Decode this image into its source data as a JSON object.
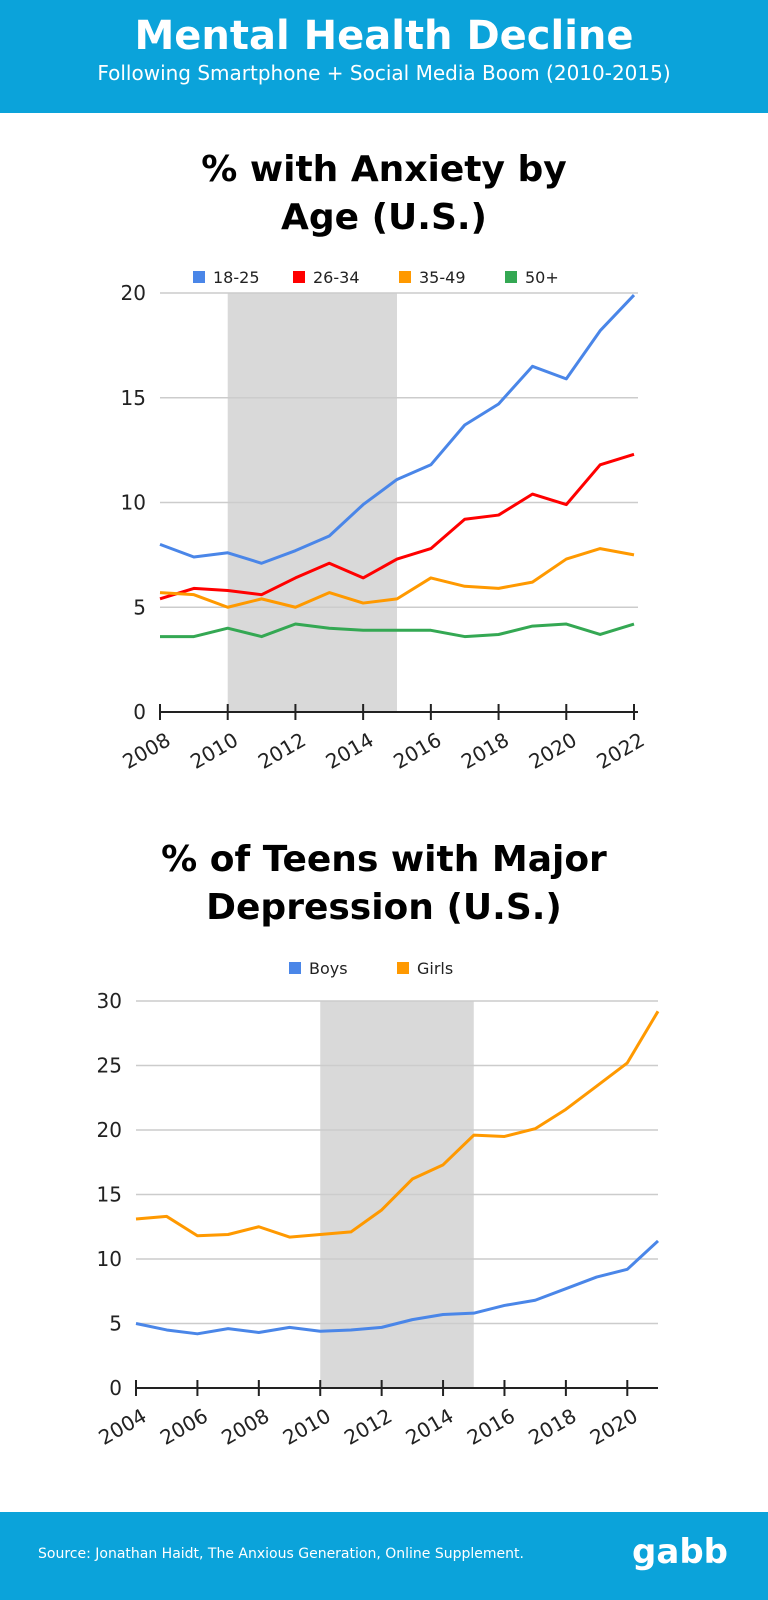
{
  "header": {
    "title": "Mental Health Decline",
    "subtitle": "Following Smartphone + Social Media Boom (2010-2015)"
  },
  "footer": {
    "source": "Source: Jonathan Haidt, The Anxious Generation, Online Supplement.",
    "logo": "gabb"
  },
  "chart_data": [
    {
      "type": "line",
      "title_lines": [
        "%  with Anxiety by",
        "Age (U.S.)"
      ],
      "x": [
        2008,
        2009,
        2010,
        2011,
        2012,
        2013,
        2014,
        2015,
        2016,
        2017,
        2018,
        2019,
        2020,
        2021,
        2022
      ],
      "xticks": [
        "2008",
        "2010",
        "2012",
        "2014",
        "2016",
        "2018",
        "2020",
        "2022"
      ],
      "yticks": [
        "0",
        "5",
        "10",
        "15",
        "20"
      ],
      "ylim": [
        0,
        20
      ],
      "grid": true,
      "legend": "top",
      "shaded_range": [
        2010,
        2015
      ],
      "series": [
        {
          "name": "18-25",
          "color": "#4a86e8",
          "values": [
            8.0,
            7.4,
            7.6,
            7.1,
            7.7,
            8.4,
            9.9,
            11.1,
            11.8,
            13.7,
            14.7,
            16.5,
            15.9,
            18.2,
            19.9
          ]
        },
        {
          "name": "26-34",
          "color": "#ff0000",
          "values": [
            5.4,
            5.9,
            5.8,
            5.6,
            6.4,
            7.1,
            6.4,
            7.3,
            7.8,
            9.2,
            9.4,
            10.4,
            9.9,
            11.8,
            12.3
          ]
        },
        {
          "name": "35-49",
          "color": "#ff9900",
          "values": [
            5.7,
            5.6,
            5.0,
            5.4,
            5.0,
            5.7,
            5.2,
            5.4,
            6.4,
            6.0,
            5.9,
            6.2,
            7.3,
            7.8,
            7.5
          ]
        },
        {
          "name": "50+",
          "color": "#34a853",
          "values": [
            3.6,
            3.6,
            4.0,
            3.6,
            4.2,
            4.0,
            3.9,
            3.9,
            3.9,
            3.6,
            3.7,
            4.1,
            4.2,
            3.7,
            4.2
          ]
        }
      ]
    },
    {
      "type": "line",
      "title_lines": [
        "%  of Teens with Major",
        "Depression (U.S.)"
      ],
      "x": [
        2004,
        2005,
        2006,
        2007,
        2008,
        2009,
        2010,
        2011,
        2012,
        2013,
        2014,
        2015,
        2016,
        2017,
        2018,
        2019,
        2020,
        2021
      ],
      "xticks": [
        "2004",
        "2006",
        "2008",
        "2010",
        "2012",
        "2014",
        "2016",
        "2018",
        "2020"
      ],
      "yticks": [
        "0",
        "5",
        "10",
        "15",
        "20",
        "25",
        "30"
      ],
      "ylim": [
        0,
        30
      ],
      "grid": true,
      "legend": "top",
      "shaded_range": [
        2010,
        2015
      ],
      "series": [
        {
          "name": "Boys",
          "color": "#4a86e8",
          "values": [
            5.0,
            4.5,
            4.2,
            4.6,
            4.3,
            4.7,
            4.4,
            4.5,
            4.7,
            5.3,
            5.7,
            5.8,
            6.4,
            6.8,
            7.7,
            8.6,
            9.2,
            11.4
          ]
        },
        {
          "name": "Girls",
          "color": "#ff9900",
          "values": [
            13.1,
            13.3,
            11.8,
            11.9,
            12.5,
            11.7,
            11.9,
            12.1,
            13.8,
            16.2,
            17.3,
            19.6,
            19.5,
            20.1,
            21.6,
            23.4,
            25.2,
            29.2
          ]
        }
      ]
    }
  ]
}
